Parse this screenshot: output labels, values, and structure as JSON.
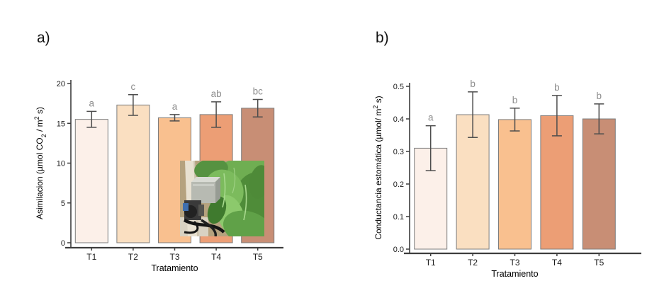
{
  "figure": {
    "panels": [
      {
        "label": "a)"
      },
      {
        "label": "b)"
      }
    ],
    "inset_photo_alt": "gas-exchange instrument clamped onto green leafy plants"
  },
  "chart_data": [
    {
      "type": "bar",
      "panel": "a",
      "categories": [
        "T1",
        "T2",
        "T3",
        "T4",
        "T5"
      ],
      "values": [
        15.5,
        17.3,
        15.7,
        16.1,
        16.9
      ],
      "errors": [
        1.0,
        1.3,
        0.4,
        1.6,
        1.1
      ],
      "sig_letters": [
        "a",
        "c",
        "a",
        "ab",
        "bc"
      ],
      "xlabel": "Tratamiento",
      "ylabel": "Asimilacion (µmol CO2 / m2 s)",
      "ylabel_parts": [
        {
          "t": "Asimilacion (µmol CO"
        },
        {
          "t": "2",
          "sub": true
        },
        {
          "t": " / m"
        },
        {
          "t": "2",
          "sup": true
        },
        {
          "t": " s)"
        }
      ],
      "ylim": [
        0,
        20
      ],
      "ytick_values": [
        0,
        5,
        10,
        15,
        20
      ],
      "ytick_labels": [
        "0",
        "5",
        "10",
        "15",
        "20"
      ],
      "bar_colors": [
        "#fcf0e9",
        "#fadfc1",
        "#f9c08f",
        "#ec9e75",
        "#c88e75"
      ],
      "bar_stroke": "#7d7d7d",
      "errorbar_color": "#4d4d4d",
      "letter_color": "#8e8e8e",
      "axis_color": "#3d3d3d",
      "tick_label_color": "#1a1a1a",
      "grid": false,
      "legend": false,
      "has_inset_photo": true
    },
    {
      "type": "bar",
      "panel": "b",
      "categories": [
        "T1",
        "T2",
        "T3",
        "T4",
        "T5"
      ],
      "values": [
        0.31,
        0.413,
        0.398,
        0.41,
        0.4
      ],
      "errors": [
        0.069,
        0.07,
        0.035,
        0.062,
        0.046
      ],
      "sig_letters": [
        "a",
        "b",
        "b",
        "b",
        "b"
      ],
      "xlabel": "Tratamiento",
      "ylabel": "Conductancia estomática (µmol/ m2 s)",
      "ylabel_parts": [
        {
          "t": "Conductancia estomática  (µmol/ m"
        },
        {
          "t": "2",
          "sup": true
        },
        {
          "t": " s)"
        }
      ],
      "ylim": [
        0,
        0.5
      ],
      "ytick_values": [
        0,
        0.1,
        0.2,
        0.3,
        0.4,
        0.5
      ],
      "ytick_labels": [
        "0.0",
        "0.1",
        "0.2",
        "0.3",
        "0.4",
        "0.5"
      ],
      "bar_colors": [
        "#fcf0e9",
        "#fadfc1",
        "#f9c08f",
        "#ec9e75",
        "#c88e75"
      ],
      "bar_stroke": "#7d7d7d",
      "errorbar_color": "#4d4d4d",
      "letter_color": "#8e8e8e",
      "axis_color": "#3d3d3d",
      "tick_label_color": "#1a1a1a",
      "grid": false,
      "legend": false,
      "has_inset_photo": false
    }
  ]
}
